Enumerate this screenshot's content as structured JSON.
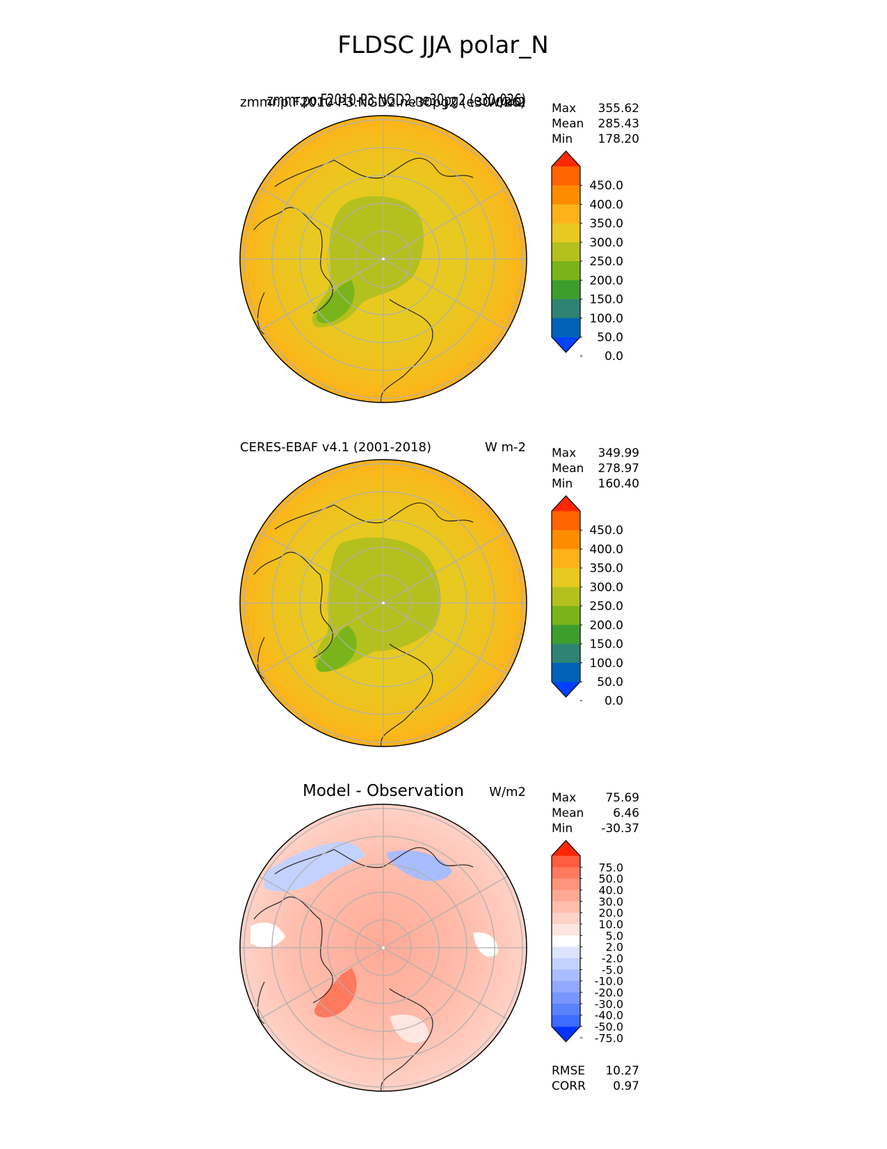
{
  "figure": {
    "title": "FLDSC JJA polar_N"
  },
  "colors": {
    "map_scale": [
      "#0040ff",
      "#0063b7",
      "#2f8372",
      "#3e9e2d",
      "#79b41a",
      "#b4c01e",
      "#e8c920",
      "#ffb219",
      "#ff8c00",
      "#ff6400",
      "#ff2800"
    ],
    "diff_scale": [
      "#0033ff",
      "#3d6cff",
      "#5a82ff",
      "#7996ff",
      "#93a8ff",
      "#a9bcff",
      "#c3d1ff",
      "#dce4ff",
      "#ffffff",
      "#ffe6e0",
      "#ffd2c8",
      "#ffbdac",
      "#ffa996",
      "#ff947c",
      "#ff7a5f",
      "#ff5c40",
      "#ff2800"
    ],
    "grid": "#b0b0b0"
  },
  "panels": [
    {
      "left_title": "zmmr.po.F2010-P3.NGD2.ne30pg2 (e30-026)",
      "left_title_overlap": "zmmr.p.F2010-P3.NGD2.ne30pg2 (e30-026)",
      "units": "W/m2",
      "stats": [
        {
          "label": "Max",
          "value": "355.62"
        },
        {
          "label": "Mean",
          "value": "285.43"
        },
        {
          "label": "Min",
          "value": "178.20"
        }
      ],
      "colorbar_labels": [
        "450.0",
        "400.0",
        "350.0",
        "300.0",
        "250.0",
        "200.0",
        "150.0",
        "100.0",
        "50.0",
        "0.0"
      ]
    },
    {
      "left_title": "CERES-EBAF v4.1 (2001-2018)",
      "units": "W m-2",
      "stats": [
        {
          "label": "Max",
          "value": "349.99"
        },
        {
          "label": "Mean",
          "value": "278.97"
        },
        {
          "label": "Min",
          "value": "160.40"
        }
      ],
      "colorbar_labels": [
        "450.0",
        "400.0",
        "350.0",
        "300.0",
        "250.0",
        "200.0",
        "150.0",
        "100.0",
        "50.0",
        "0.0"
      ]
    },
    {
      "center_title": "Model - Observation",
      "units": "W/m2",
      "stats": [
        {
          "label": "Max",
          "value": "75.69"
        },
        {
          "label": "Mean",
          "value": "6.46"
        },
        {
          "label": "Min",
          "value": "-30.37"
        }
      ],
      "colorbar_labels": [
        "75.0",
        "50.0",
        "40.0",
        "30.0",
        "20.0",
        "10.0",
        "5.0",
        "2.0",
        "-2.0",
        "-5.0",
        "-10.0",
        "-20.0",
        "-30.0",
        "-40.0",
        "-50.0",
        "-75.0"
      ],
      "metrics": [
        {
          "label": "RMSE",
          "value": "10.27"
        },
        {
          "label": "CORR",
          "value": "0.97"
        }
      ]
    }
  ]
}
